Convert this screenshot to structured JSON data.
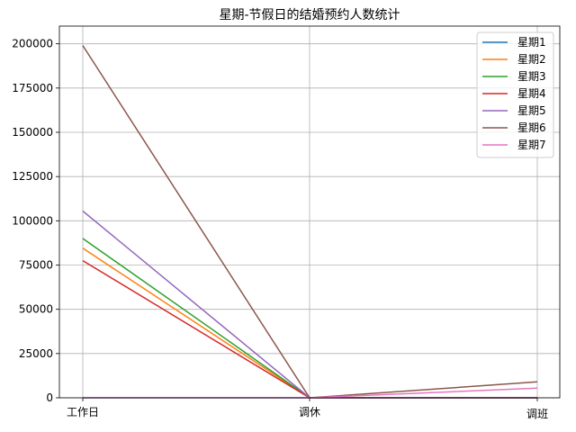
{
  "chart_data": {
    "type": "line",
    "title": "星期-节假日的结婚预约人数统计",
    "xlabel": "",
    "ylabel": "",
    "categories": [
      "工作日",
      "调休",
      "调班"
    ],
    "ylim": [
      0,
      210000
    ],
    "yticks": [
      0,
      25000,
      50000,
      75000,
      100000,
      125000,
      150000,
      175000,
      200000
    ],
    "grid": true,
    "legend_position": "top-right",
    "series": [
      {
        "name": "星期1",
        "color": "#1f77b4",
        "values": [
          0,
          0,
          0
        ]
      },
      {
        "name": "星期2",
        "color": "#ff7f0e",
        "values": [
          84500,
          0,
          0
        ]
      },
      {
        "name": "星期3",
        "color": "#2ca02c",
        "values": [
          90000,
          0,
          0
        ]
      },
      {
        "name": "星期4",
        "color": "#d62728",
        "values": [
          77500,
          0,
          0
        ]
      },
      {
        "name": "星期5",
        "color": "#9467bd",
        "values": [
          105500,
          0,
          0
        ]
      },
      {
        "name": "星期6",
        "color": "#8c564b",
        "values": [
          199000,
          0,
          9000
        ]
      },
      {
        "name": "星期7",
        "color": "#e377c2",
        "values": [
          0,
          0,
          5500
        ]
      }
    ]
  }
}
